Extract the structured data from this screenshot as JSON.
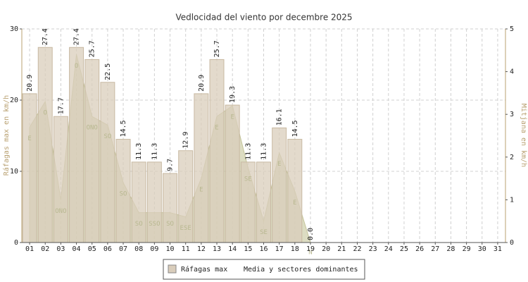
{
  "chart_data": {
    "type": "bar",
    "title": "Vedlocidad del viento por decembre 2025",
    "ylabel": "Ráfagas max en km/h",
    "y2label": "Mitjana en km/h",
    "categories": [
      "01",
      "02",
      "03",
      "04",
      "05",
      "06",
      "07",
      "08",
      "09",
      "10",
      "11",
      "12",
      "13",
      "14",
      "15",
      "16",
      "17",
      "18",
      "19",
      "20",
      "21",
      "22",
      "23",
      "24",
      "25",
      "26",
      "27",
      "28",
      "29",
      "30",
      "31"
    ],
    "ylim": [
      0,
      30
    ],
    "yticks": [
      0,
      10,
      20,
      30
    ],
    "y2lim": [
      0,
      5
    ],
    "y2ticks": [
      0,
      1,
      2,
      3,
      4,
      5
    ],
    "grid": true,
    "legend": "bottom",
    "series": [
      {
        "name": "Ráfagas max",
        "color": "#d9cdbb",
        "values": [
          20.9,
          27.4,
          17.7,
          27.4,
          25.7,
          22.5,
          14.5,
          11.3,
          11.3,
          9.7,
          12.9,
          20.9,
          25.7,
          19.3,
          11.3,
          11.3,
          16.1,
          14.5,
          0,
          null,
          null,
          null,
          null,
          null,
          null,
          null,
          null,
          null,
          null,
          null,
          null
        ],
        "value_labels": [
          "20.9",
          "27.4",
          "17.7",
          "27.4",
          "25.7",
          "22.5",
          "14.5",
          "11.3",
          "11.3",
          "9.7",
          "12.9",
          "20.9",
          "25.7",
          "19.3",
          "11.3",
          "11.3",
          "16.1",
          "14.5",
          "0.0",
          null,
          null,
          null,
          null,
          null,
          null,
          null,
          null,
          null,
          null,
          null,
          null
        ]
      },
      {
        "name": "Media y sectores dominantes",
        "color": "#c4c49a",
        "axis": "y2",
        "values": [
          2.7,
          3.3,
          1.0,
          4.4,
          2.95,
          2.75,
          1.4,
          0.7,
          0.7,
          0.7,
          0.6,
          1.5,
          2.95,
          3.2,
          1.75,
          0.5,
          2.1,
          1.2,
          0,
          null,
          null,
          null,
          null,
          null,
          null,
          null,
          null,
          null,
          null,
          null,
          null
        ],
        "sectors": [
          "E",
          "O",
          "ONO",
          "O",
          "ONO",
          "SO",
          "SO",
          "SO",
          "SSO",
          "SO",
          "ESE",
          "E",
          "E",
          "E",
          "SE",
          "SE",
          "E",
          "E",
          "N",
          null,
          null,
          null,
          null,
          null,
          null,
          null,
          null,
          null,
          null,
          null,
          null
        ]
      }
    ]
  }
}
